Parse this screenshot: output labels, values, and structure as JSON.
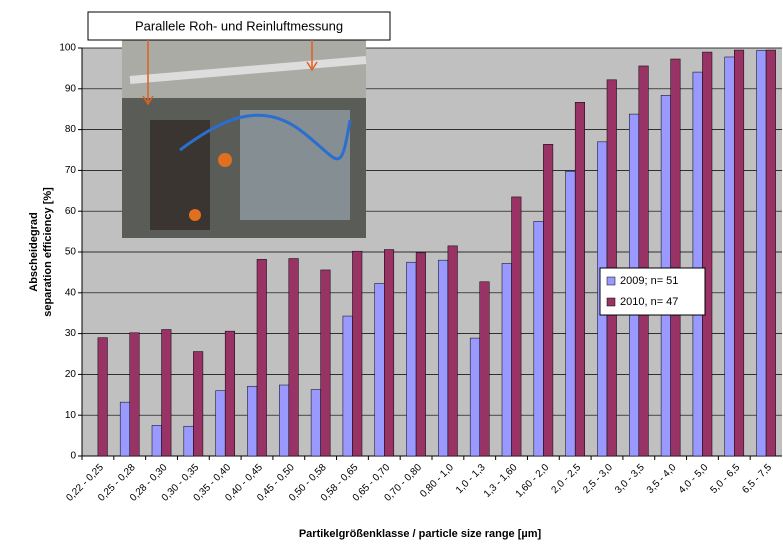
{
  "chart_data": {
    "type": "bar",
    "annotation": "Parallele Roh- und Reinluftmessung",
    "y_label": [
      "Abscheidegrad",
      "separation efficiency [%]"
    ],
    "x_label": "Partikelgrößenklasse / particle size range [µm]",
    "categories": [
      "0,22 - 0,25",
      "0,25 - 0,28",
      "0,28 - 0,30",
      "0,30 - 0,35",
      "0,35 - 0,40",
      "0,40 - 0,45",
      "0,45 - 0,50",
      "0,50 - 0,58",
      "0,58 - 0,65",
      "0,65 - 0,70",
      "0,70 - 0,80",
      "0,80 - 1,0",
      "1,0 - 1,3",
      "1,3 - 1,60",
      "1,60 - 2,0",
      "2,0 - 2,5",
      "2,5 - 3,0",
      "3,0 - 3,5",
      "3,5 - 4,0",
      "4,0 - 5,0",
      "5,0 - 6,5",
      "6,5 - 7,5"
    ],
    "series": [
      {
        "name": "2009; n= 51",
        "color": "#9999ff",
        "values": [
          null,
          13.2,
          7.5,
          7.3,
          16,
          17.1,
          17.4,
          16.3,
          34.3,
          42.3,
          47.5,
          48,
          28.9,
          47.2,
          57.5,
          69.8,
          77,
          83.8,
          88.4,
          94.1,
          97.8,
          99.4
        ]
      },
      {
        "name": "2010, n= 47",
        "color": "#993366",
        "values": [
          29,
          30.2,
          31,
          25.6,
          30.6,
          48.2,
          48.4,
          45.6,
          50.2,
          50.6,
          49.8,
          51.5,
          42.7,
          63.5,
          76.4,
          86.7,
          92.2,
          95.6,
          97.3,
          99,
          99.5,
          99.5
        ]
      }
    ],
    "ylim": [
      0,
      100
    ],
    "yticks": [
      0,
      10,
      20,
      30,
      40,
      50,
      60,
      70,
      80,
      90,
      100
    ],
    "grid": true
  }
}
